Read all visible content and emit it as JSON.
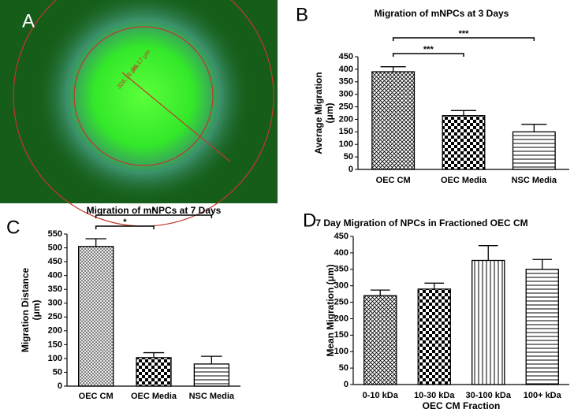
{
  "panel_a": {
    "panel_label": "A",
    "measure_labels": [
      "308.78 μm",
      "90.17 μm"
    ]
  },
  "chart_data": [
    {
      "type": "bar",
      "panel_label": "B",
      "title": "Migration of mNPCs at 3 Days",
      "ylabel": [
        "Average Migration",
        "(μm)"
      ],
      "categories": [
        "OEC CM",
        "OEC Media",
        "NSC Media"
      ],
      "values": [
        390,
        215,
        150
      ],
      "errors": [
        20,
        20,
        30
      ],
      "patterns": [
        "crosshatch",
        "checker",
        "hlines"
      ],
      "ylim": [
        0,
        450
      ],
      "yticks": [
        0,
        50,
        100,
        150,
        200,
        250,
        300,
        350,
        400,
        450
      ],
      "annotations": [
        {
          "text": "***",
          "from": 0,
          "to": 1
        },
        {
          "text": "***",
          "from": 0,
          "to": 2
        }
      ]
    },
    {
      "type": "bar",
      "panel_label": "C",
      "title": "Migration of mNPCs at 7 Days",
      "ylabel": [
        "Migration  Distance",
        "(μm)"
      ],
      "categories": [
        "OEC CM",
        "OEC Media",
        "NSC Media"
      ],
      "values": [
        505,
        103,
        80
      ],
      "errors": [
        28,
        18,
        28
      ],
      "patterns": [
        "diag",
        "checker",
        "hlines"
      ],
      "ylim": [
        0,
        550
      ],
      "yticks": [
        0,
        50,
        100,
        150,
        200,
        250,
        300,
        350,
        400,
        450,
        500,
        550
      ],
      "annotations": [
        {
          "text": "*",
          "from": 0,
          "to": 1
        },
        {
          "text": "*",
          "from": 0,
          "to": 2
        }
      ]
    },
    {
      "type": "bar",
      "panel_label": "D",
      "title": "7  Day Migration of NPCs in Fractioned OEC CM",
      "ylabel": [
        "Mean Migration (μm)"
      ],
      "xlabel": "OEC CM Fraction",
      "categories": [
        "0-10 kDa",
        "10-30 kDa",
        "30-100 kDa",
        "100+ kDa"
      ],
      "values": [
        270,
        290,
        377,
        350
      ],
      "errors": [
        17,
        18,
        45,
        30
      ],
      "patterns": [
        "crosshatch",
        "checker",
        "vlines",
        "hlines"
      ],
      "ylim": [
        0,
        450
      ],
      "yticks": [
        0,
        50,
        100,
        150,
        200,
        250,
        300,
        350,
        400,
        450
      ],
      "annotations": []
    }
  ]
}
